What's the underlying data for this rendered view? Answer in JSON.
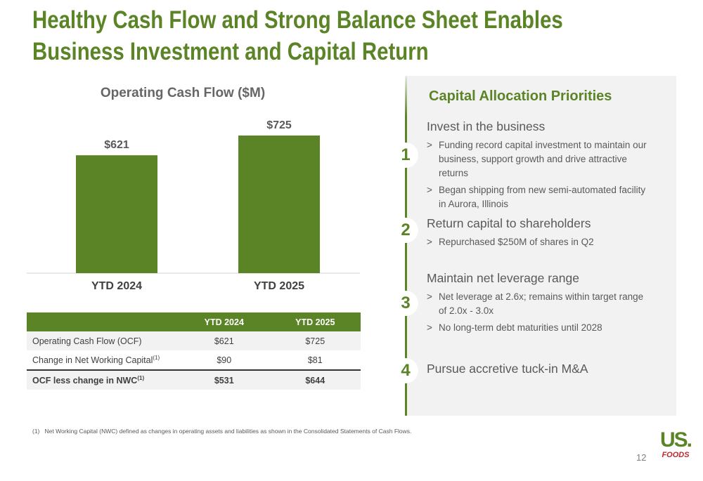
{
  "title": "Healthy Cash Flow and Strong Balance Sheet Enables Business Investment and Capital Return",
  "chart_data": {
    "type": "bar",
    "title": "Operating Cash Flow ($M)",
    "categories": [
      "YTD 2024",
      "YTD 2025"
    ],
    "values": [
      621,
      725
    ],
    "value_labels": [
      "$621",
      "$725"
    ],
    "color": "#5b8427"
  },
  "table": {
    "columns": [
      "YTD 2024",
      "YTD 2025"
    ],
    "rows": [
      {
        "label": "Operating Cash Flow (OCF)",
        "cells": [
          "$621",
          "$725"
        ]
      },
      {
        "label": "Change in Net Working Capital",
        "note": "(1)",
        "cells": [
          "$90",
          "$81"
        ]
      },
      {
        "label": "OCF less change in NWC",
        "note": "(1)",
        "cells": [
          "$531",
          "$644"
        ]
      }
    ]
  },
  "priorities": {
    "title": "Capital Allocation Priorities",
    "bullet_marker": ">",
    "items": [
      {
        "number": "1",
        "heading": "Invest in the business",
        "bullets": [
          "Funding record capital investment to maintain our business, support growth and drive attractive returns",
          "Began shipping from new semi-automated facility in Aurora, Illinois"
        ]
      },
      {
        "number": "2",
        "heading": "Return capital to shareholders",
        "bullets": [
          "Repurchased $250M of shares in Q2"
        ]
      },
      {
        "number": "3",
        "heading": "Maintain net leverage range",
        "bullets": [
          "Net leverage at 2.6x; remains within target range of 2.0x - 3.0x",
          "No long-term debt maturities until 2028"
        ]
      },
      {
        "number": "4",
        "heading": "Pursue accretive tuck-in M&A",
        "bullets": []
      }
    ]
  },
  "footnote": {
    "marker": "(1)",
    "text": "Net Working Capital (NWC) defined as changes in operating assets and liabilities as shown in the Consolidated Statements of Cash Flows."
  },
  "page_number": "12",
  "logo": {
    "top": "US.",
    "bottom": "FOODS"
  }
}
